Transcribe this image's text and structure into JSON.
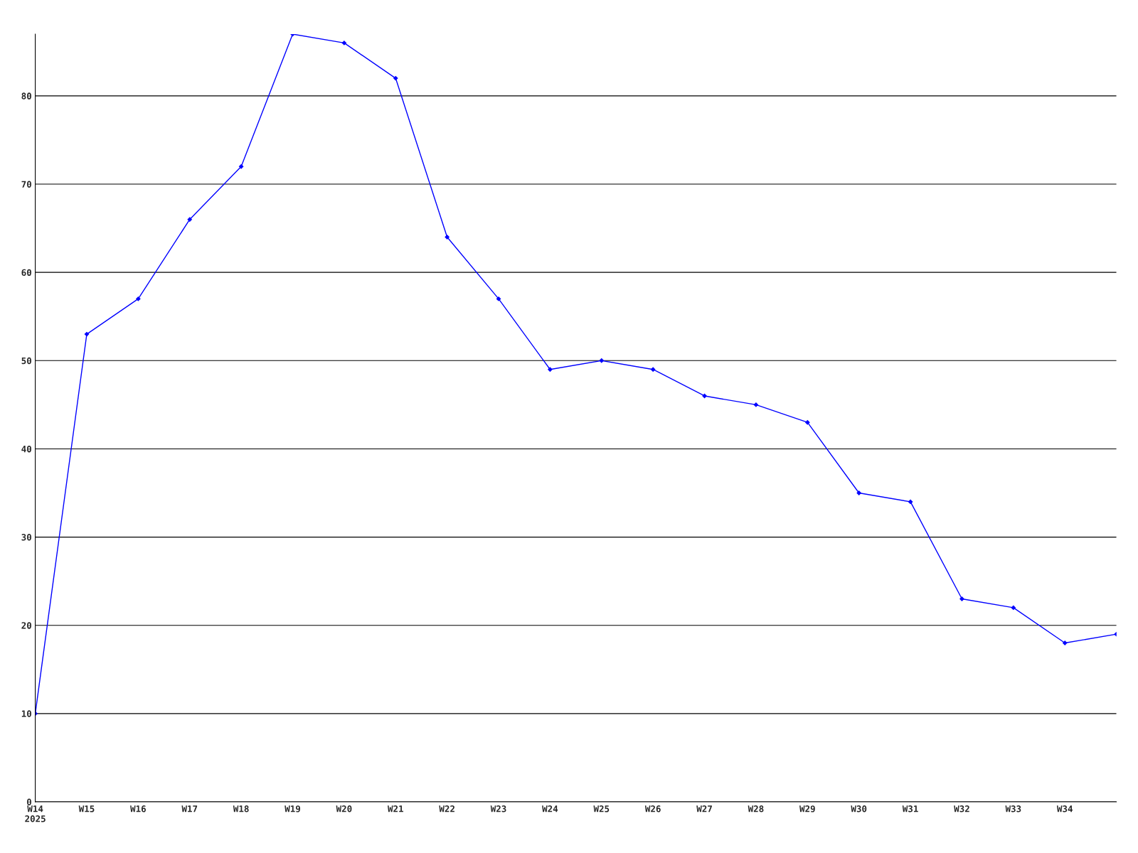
{
  "chart_data": {
    "type": "line",
    "categories": [
      "W14\n2025",
      "W15",
      "W16",
      "W17",
      "W18",
      "W19",
      "W20",
      "W21",
      "W22",
      "W23",
      "W24",
      "W25",
      "W26",
      "W27",
      "W28",
      "W29",
      "W30",
      "W31",
      "W32",
      "W33",
      "W34",
      null
    ],
    "series": [
      {
        "color": "#0000ff",
        "values": [
          10,
          53,
          57,
          66,
          72,
          87,
          86,
          82,
          64,
          57,
          49,
          50,
          49,
          46,
          45,
          43,
          35,
          34,
          23,
          22,
          18,
          19
        ]
      }
    ],
    "ylim": [
      0,
      87
    ],
    "yticks": [
      0,
      10,
      20,
      30,
      40,
      50,
      60,
      70,
      80
    ],
    "grid": "y",
    "marker": "diamond",
    "line_style": "solid",
    "legend": false
  }
}
